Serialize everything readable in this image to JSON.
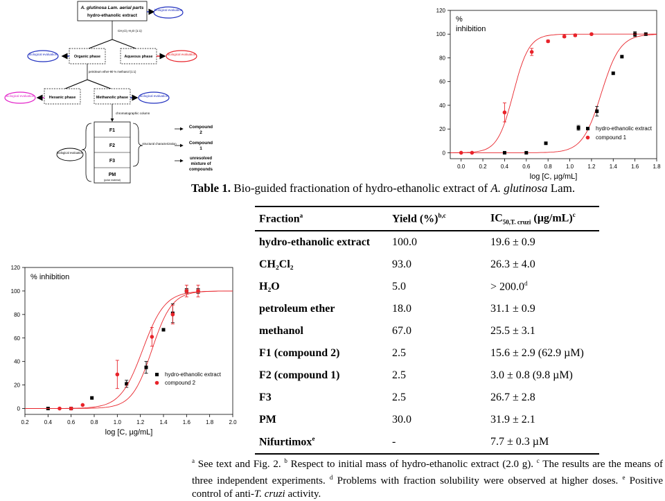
{
  "flowchart": {
    "top_box": {
      "line1": "A. glutinosa Lam. aerial parts",
      "line2": "hydro-ethanolic extract"
    },
    "bio_label": "biological evaluation",
    "partition1": "CH₂Cl₂-H₂O (1:1)",
    "organic_phase": "Organic phase",
    "aqueous_phase": "Aqueous phase",
    "partition2": "petroleum ether-90 % methanol (1:1)",
    "hexanic_phase": "Hexanic phase",
    "methanolic_phase": "Methanolic phase",
    "chromatographic": "chromatographic column",
    "fractions": [
      "F1",
      "F2",
      "F3",
      "PM"
    ],
    "pm_sub": "(polar material)",
    "structural": "structural characterization",
    "results": [
      {
        "line1": "Compound",
        "line2": "2"
      },
      {
        "line1": "Compound",
        "line2": "1"
      },
      {
        "line1": "unresolved",
        "line2": "mixture of",
        "line3": "compounds"
      }
    ],
    "colors": {
      "blue": "#1f2fbf",
      "red": "#e8232a",
      "magenta": "#e21fc8"
    }
  },
  "chart_data": [
    {
      "type": "scatter",
      "title": "% inhibition",
      "xlabel": "log [C, µg/mL]",
      "ylabel": "",
      "xlim": [
        -0.1,
        1.8
      ],
      "ylim": [
        -5,
        120
      ],
      "x_ticks": [
        "0.0",
        "0.2",
        "0.4",
        "0.6",
        "0.8",
        "1.0",
        "1.2",
        "1.4",
        "1.6",
        "1.8"
      ],
      "y_ticks": [
        "0",
        "20",
        "40",
        "60",
        "80",
        "100",
        "120"
      ],
      "legend": "right",
      "series": [
        {
          "name": "hydro-ethanolic extract",
          "marker": "square",
          "color": "#000000",
          "points": [
            [
              0.4,
              0
            ],
            [
              0.6,
              0
            ],
            [
              0.78,
              8
            ],
            [
              1.08,
              21
            ],
            [
              1.25,
              35
            ],
            [
              1.4,
              67
            ],
            [
              1.48,
              81
            ],
            [
              1.6,
              100
            ],
            [
              1.7,
              100
            ]
          ],
          "errors": [
            0,
            0,
            0,
            2,
            4,
            0,
            0,
            2,
            0
          ],
          "fit": {
            "ec50": 1.29,
            "slope": 5
          }
        },
        {
          "name": "compound 1",
          "marker": "circle",
          "color": "#e8232a",
          "points": [
            [
              0.0,
              0
            ],
            [
              0.1,
              0
            ],
            [
              0.4,
              34
            ],
            [
              0.65,
              85
            ],
            [
              0.8,
              94
            ],
            [
              0.95,
              98
            ],
            [
              1.05,
              99
            ],
            [
              1.2,
              100
            ]
          ],
          "errors": [
            0,
            0,
            8,
            3,
            1,
            1,
            1,
            0
          ],
          "fit": {
            "ec50": 0.48,
            "slope": 6
          }
        }
      ]
    },
    {
      "type": "scatter",
      "title": "% inhibition",
      "xlabel": "log [C, µg/mL]",
      "ylabel": "",
      "xlim": [
        0.2,
        2.0
      ],
      "ylim": [
        -5,
        120
      ],
      "x_ticks": [
        "0.2",
        "0.4",
        "0.6",
        "0.8",
        "1.0",
        "1.2",
        "1.4",
        "1.6",
        "1.8",
        "2.0"
      ],
      "y_ticks": [
        "0",
        "20",
        "40",
        "60",
        "80",
        "100",
        "120"
      ],
      "legend": "bottom-right",
      "series": [
        {
          "name": "hydro-ethanolic extract",
          "marker": "square",
          "color": "#000000",
          "points": [
            [
              0.4,
              0
            ],
            [
              0.6,
              0
            ],
            [
              0.78,
              9
            ],
            [
              1.08,
              21
            ],
            [
              1.25,
              35
            ],
            [
              1.4,
              67
            ],
            [
              1.48,
              81
            ],
            [
              1.6,
              100
            ],
            [
              1.7,
              100
            ]
          ],
          "errors": [
            0,
            0,
            0,
            3,
            5,
            0,
            8,
            2,
            2
          ],
          "fit": {
            "ec50": 1.3,
            "slope": 5
          }
        },
        {
          "name": "compound 2",
          "marker": "circle",
          "color": "#e8232a",
          "points": [
            [
              0.5,
              0
            ],
            [
              0.6,
              0
            ],
            [
              0.7,
              3
            ],
            [
              1.0,
              29
            ],
            [
              1.3,
              61
            ],
            [
              1.48,
              80
            ],
            [
              1.6,
              100
            ],
            [
              1.7,
              100
            ]
          ],
          "errors": [
            0,
            0,
            0,
            12,
            8,
            8,
            5,
            5
          ],
          "fit": {
            "ec50": 1.22,
            "slope": 4.5
          }
        }
      ]
    }
  ],
  "table": {
    "caption_bold": "Table 1.",
    "caption_text": " Bio-guided fractionation of hydro-ethanolic extract of ",
    "caption_italic": "A. glutinosa",
    "caption_end": " Lam.",
    "headers": {
      "fraction": "Fraction",
      "fraction_sup": "a",
      "yield": "Yield (%)",
      "yield_sup": "b,c",
      "ic50": "IC",
      "ic50_sub": "50,T. cruzi",
      "ic50_unit": " (µg/mL)",
      "ic50_sup": "c"
    },
    "rows": [
      {
        "fraction": "hydro-ethanolic extract",
        "yield": "100.0",
        "ic50": "19.6 ± 0.9"
      },
      {
        "fraction": "CH₂Cl₂",
        "yield": "93.0",
        "ic50": "26.3 ± 4.0"
      },
      {
        "fraction": "H₂O",
        "yield": "5.0",
        "ic50": "> 200.0",
        "ic50_sup": "d"
      },
      {
        "fraction": "petroleum ether",
        "yield": "18.0",
        "ic50": "31.1 ± 0.9"
      },
      {
        "fraction": "methanol",
        "yield": "67.0",
        "ic50": "25.5 ± 3.1"
      },
      {
        "fraction": "F1 (compound 2)",
        "yield": "2.5",
        "ic50": "15.6 ± 2.9 (62.9 µM)"
      },
      {
        "fraction": "F2 (compound 1)",
        "yield": "2.5",
        "ic50": "3.0 ± 0.8 (9.8 µM)"
      },
      {
        "fraction": "F3",
        "yield": "2.5",
        "ic50": "26.7 ± 2.8"
      },
      {
        "fraction": "PM",
        "yield": "30.0",
        "ic50": "31.9 ± 2.1"
      },
      {
        "fraction": "Nifurtimox",
        "fraction_sup": "e",
        "yield": "-",
        "ic50": "7.7 ± 0.3 µM"
      }
    ],
    "footnote": [
      {
        "sup": "a",
        "text": " See text and Fig. 2. "
      },
      {
        "sup": "b",
        "text": " Respect to initial mass of hydro-ethanolic extract (2.0 g). "
      },
      {
        "sup": "c",
        "text": " The results are the means of three independent experiments. "
      },
      {
        "sup": "d",
        "text": " Problems with fraction solubility were observed at higher doses. "
      },
      {
        "sup": "e",
        "text": " Positive control of anti-"
      },
      {
        "italic": "T. cruzi"
      },
      {
        "text": " activity."
      }
    ]
  }
}
